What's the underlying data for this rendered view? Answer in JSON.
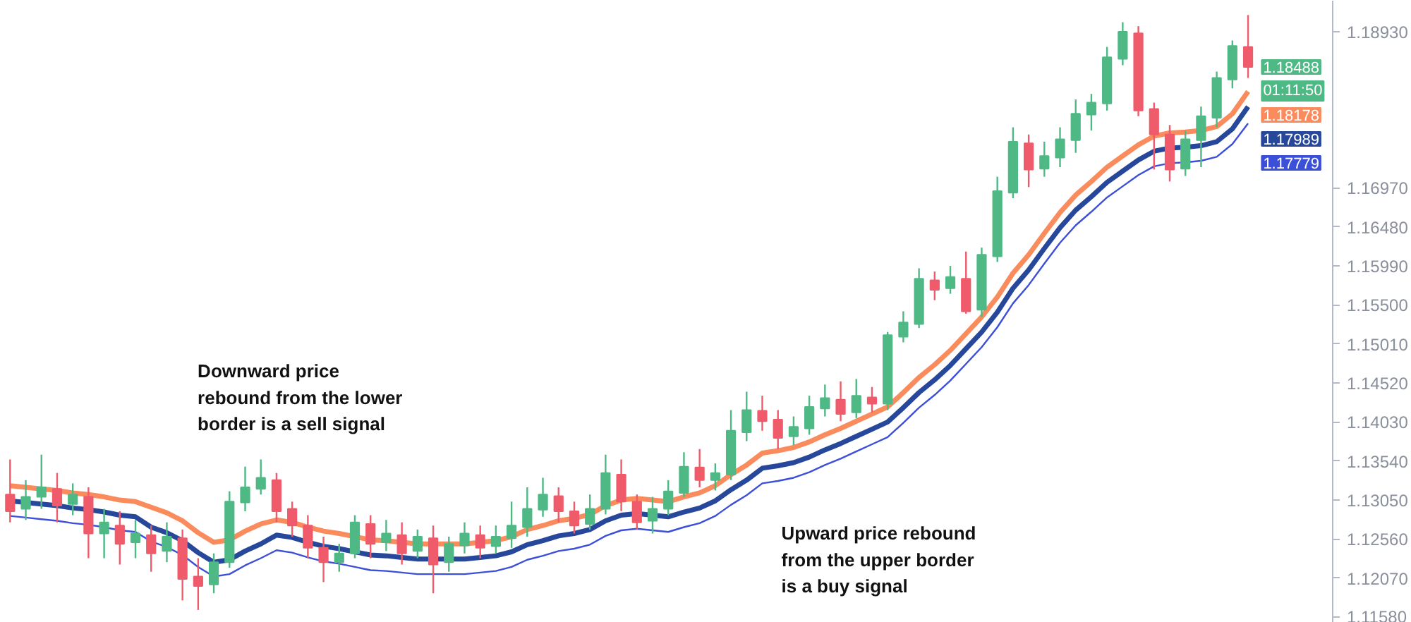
{
  "chart_data": {
    "type": "candlestick",
    "categories": [
      null,
      null,
      null,
      null,
      null,
      null,
      null,
      null,
      null,
      null,
      null,
      null,
      null,
      null,
      null,
      null,
      null,
      null,
      null,
      null,
      null,
      null,
      null,
      null,
      null,
      null,
      null,
      null,
      null,
      null,
      null,
      null,
      null,
      null,
      null,
      null,
      null,
      null,
      null,
      null,
      null,
      null,
      null,
      null,
      null,
      null,
      null,
      null,
      null,
      null,
      null,
      null,
      null,
      null,
      null,
      null,
      null,
      null,
      null,
      null,
      null,
      null,
      null,
      null,
      null,
      null,
      null,
      null,
      null,
      null,
      null,
      null,
      null,
      null,
      null,
      null,
      null,
      null,
      null,
      null
    ],
    "ohlc": [
      [
        1.1312,
        1.1356,
        1.1277,
        1.1291
      ],
      [
        1.1294,
        1.133,
        1.128,
        1.1309
      ],
      [
        1.1309,
        1.1362,
        1.1294,
        1.1321
      ],
      [
        1.1319,
        1.1339,
        1.1277,
        1.1298
      ],
      [
        1.13,
        1.1326,
        1.1286,
        1.1312
      ],
      [
        1.1309,
        1.1321,
        1.1232,
        1.1263
      ],
      [
        1.1263,
        1.1294,
        1.1232,
        1.1277
      ],
      [
        1.1273,
        1.1291,
        1.1224,
        1.125
      ],
      [
        1.1252,
        1.128,
        1.1232,
        1.1263
      ],
      [
        1.1261,
        1.1273,
        1.1215,
        1.1238
      ],
      [
        1.1241,
        1.1277,
        1.1227,
        1.1259
      ],
      [
        1.1257,
        1.1268,
        1.1179,
        1.1206
      ],
      [
        1.1209,
        1.1232,
        1.1167,
        1.1197
      ],
      [
        1.1199,
        1.1238,
        1.1188,
        1.1227
      ],
      [
        1.1227,
        1.1316,
        1.122,
        1.1303
      ],
      [
        1.1302,
        1.1347,
        1.1291,
        1.1321
      ],
      [
        1.1319,
        1.1356,
        1.1312,
        1.1333
      ],
      [
        1.133,
        1.1339,
        1.1277,
        1.1291
      ],
      [
        1.1294,
        1.1303,
        1.1259,
        1.1273
      ],
      [
        1.1273,
        1.1286,
        1.1232,
        1.1245
      ],
      [
        1.1245,
        1.1259,
        1.1202,
        1.1227
      ],
      [
        1.1227,
        1.125,
        1.1215,
        1.1238
      ],
      [
        1.1238,
        1.1286,
        1.1232,
        1.1277
      ],
      [
        1.1275,
        1.1286,
        1.1232,
        1.125
      ],
      [
        1.1252,
        1.128,
        1.1241,
        1.1263
      ],
      [
        1.1261,
        1.1277,
        1.1224,
        1.1238
      ],
      [
        1.1241,
        1.1268,
        1.1232,
        1.1259
      ],
      [
        1.1257,
        1.1273,
        1.1188,
        1.1224
      ],
      [
        1.1227,
        1.1259,
        1.1215,
        1.125
      ],
      [
        1.1248,
        1.1277,
        1.1238,
        1.1263
      ],
      [
        1.1261,
        1.1273,
        1.1232,
        1.1245
      ],
      [
        1.1247,
        1.1273,
        1.1238,
        1.1259
      ],
      [
        1.1257,
        1.1303,
        1.1245,
        1.1273
      ],
      [
        1.1271,
        1.1321,
        1.1259,
        1.1294
      ],
      [
        1.1293,
        1.1333,
        1.1284,
        1.1312
      ],
      [
        1.131,
        1.1321,
        1.1277,
        1.1291
      ],
      [
        1.1291,
        1.1303,
        1.1263,
        1.1273
      ],
      [
        1.1275,
        1.1312,
        1.1268,
        1.1294
      ],
      [
        1.1294,
        1.1362,
        1.1287,
        1.1339
      ],
      [
        1.1337,
        1.1356,
        1.1291,
        1.1303
      ],
      [
        1.1303,
        1.1312,
        1.1268,
        1.1277
      ],
      [
        1.1279,
        1.1309,
        1.1263,
        1.1294
      ],
      [
        1.1294,
        1.133,
        1.1286,
        1.1316
      ],
      [
        1.1314,
        1.1365,
        1.1309,
        1.1347
      ],
      [
        1.1346,
        1.1369,
        1.1321,
        1.133
      ],
      [
        1.133,
        1.1351,
        1.1317,
        1.1339
      ],
      [
        1.1337,
        1.1418,
        1.133,
        1.1392
      ],
      [
        1.139,
        1.1441,
        1.1379,
        1.1418
      ],
      [
        1.1417,
        1.1436,
        1.1392,
        1.1404
      ],
      [
        1.1406,
        1.1418,
        1.1369,
        1.1383
      ],
      [
        1.1385,
        1.141,
        1.1374,
        1.1397
      ],
      [
        1.1395,
        1.1436,
        1.1387,
        1.1422
      ],
      [
        1.142,
        1.145,
        1.141,
        1.1433
      ],
      [
        1.1431,
        1.1454,
        1.1404,
        1.1413
      ],
      [
        1.1415,
        1.1457,
        1.1408,
        1.1436
      ],
      [
        1.1434,
        1.1447,
        1.1415,
        1.1426
      ],
      [
        1.1426,
        1.1516,
        1.1418,
        1.1512
      ],
      [
        1.151,
        1.1542,
        1.1503,
        1.1528
      ],
      [
        1.1526,
        1.1596,
        1.1521,
        1.1583
      ],
      [
        1.1581,
        1.1592,
        1.1556,
        1.1569
      ],
      [
        1.1571,
        1.1599,
        1.1564,
        1.1585
      ],
      [
        1.1583,
        1.1617,
        1.1539,
        1.1542
      ],
      [
        1.1544,
        1.1622,
        1.1535,
        1.1613
      ],
      [
        1.1611,
        1.1711,
        1.1604,
        1.1693
      ],
      [
        1.1691,
        1.1773,
        1.1684,
        1.1755
      ],
      [
        1.1753,
        1.1764,
        1.1698,
        1.172
      ],
      [
        1.1721,
        1.1755,
        1.1711,
        1.1737
      ],
      [
        1.1735,
        1.1773,
        1.1723,
        1.1758
      ],
      [
        1.1757,
        1.1808,
        1.1741,
        1.179
      ],
      [
        1.1789,
        1.1815,
        1.1769,
        1.1804
      ],
      [
        1.1803,
        1.1874,
        1.1794,
        1.1861
      ],
      [
        1.1859,
        1.1905,
        1.1851,
        1.1893
      ],
      [
        1.1891,
        1.19,
        1.1787,
        1.1794
      ],
      [
        1.1796,
        1.1804,
        1.172,
        1.1764
      ],
      [
        1.1764,
        1.1776,
        1.1705,
        1.172
      ],
      [
        1.1721,
        1.1769,
        1.1712,
        1.1758
      ],
      [
        1.1757,
        1.1799,
        1.1723,
        1.1787
      ],
      [
        1.1785,
        1.1843,
        1.1773,
        1.1835
      ],
      [
        1.1833,
        1.1882,
        1.1822,
        1.1875
      ],
      [
        1.1874,
        1.1914,
        1.1835,
        1.18488
      ]
    ],
    "colors": [
      "#ef5b6a",
      "#4fb985",
      "#4fb985",
      "#ef5b6a",
      "#4fb985",
      "#ef5b6a",
      "#4fb985",
      "#ef5b6a",
      "#4fb985",
      "#ef5b6a",
      "#4fb985",
      "#ef5b6a",
      "#ef5b6a",
      "#4fb985",
      "#4fb985",
      "#4fb985",
      "#4fb985",
      "#ef5b6a",
      "#ef5b6a",
      "#ef5b6a",
      "#ef5b6a",
      "#4fb985",
      "#4fb985",
      "#ef5b6a",
      "#4fb985",
      "#ef5b6a",
      "#4fb985",
      "#ef5b6a",
      "#4fb985",
      "#4fb985",
      "#ef5b6a",
      "#4fb985",
      "#4fb985",
      "#4fb985",
      "#4fb985",
      "#ef5b6a",
      "#ef5b6a",
      "#4fb985",
      "#4fb985",
      "#ef5b6a",
      "#ef5b6a",
      "#4fb985",
      "#4fb985",
      "#4fb985",
      "#ef5b6a",
      "#4fb985",
      "#4fb985",
      "#4fb985",
      "#ef5b6a",
      "#ef5b6a",
      "#4fb985",
      "#4fb985",
      "#4fb985",
      "#ef5b6a",
      "#4fb985",
      "#ef5b6a",
      "#4fb985",
      "#4fb985",
      "#4fb985",
      "#ef5b6a",
      "#4fb985",
      "#ef5b6a",
      "#4fb985",
      "#4fb985",
      "#4fb985",
      "#ef5b6a",
      "#4fb985",
      "#4fb985",
      "#4fb985",
      "#4fb985",
      "#4fb985",
      "#4fb985",
      "#ef5b6a",
      "#ef5b6a",
      "#ef5b6a",
      "#4fb985",
      "#4fb985",
      "#4fb985",
      "#4fb985",
      "#ef5b6a"
    ],
    "series": [
      {
        "type": "line",
        "color": "#f98b5c",
        "values": [
          1.1323,
          1.1321,
          1.1319,
          1.1317,
          1.1314,
          1.1312,
          1.1309,
          1.1305,
          1.1303,
          1.1296,
          1.1289,
          1.1279,
          1.1264,
          1.1252,
          1.1255,
          1.1266,
          1.1275,
          1.128,
          1.1277,
          1.1271,
          1.1266,
          1.1263,
          1.1259,
          1.1255,
          1.1254,
          1.1252,
          1.125,
          1.125,
          1.125,
          1.125,
          1.1252,
          1.1254,
          1.1259,
          1.1268,
          1.1273,
          1.1279,
          1.1282,
          1.1287,
          1.1298,
          1.1305,
          1.1307,
          1.1305,
          1.1303,
          1.1309,
          1.1314,
          1.1323,
          1.1337,
          1.1349,
          1.1364,
          1.1367,
          1.1371,
          1.1378,
          1.1387,
          1.1395,
          1.1404,
          1.1413,
          1.1422,
          1.144,
          1.1459,
          1.1475,
          1.1493,
          1.1514,
          1.1535,
          1.156,
          1.159,
          1.1613,
          1.164,
          1.1666,
          1.1688,
          1.1705,
          1.1723,
          1.1737,
          1.1751,
          1.1762,
          1.1766,
          1.1767,
          1.1769,
          1.1774,
          1.179,
          1.1818
        ]
      },
      {
        "type": "line",
        "color": "#26479a",
        "values": [
          1.1304,
          1.1302,
          1.13,
          1.1298,
          1.1295,
          1.1293,
          1.129,
          1.1286,
          1.1284,
          1.1271,
          1.1264,
          1.1254,
          1.1239,
          1.1227,
          1.123,
          1.1241,
          1.125,
          1.1261,
          1.1258,
          1.1252,
          1.1247,
          1.1244,
          1.124,
          1.1236,
          1.1235,
          1.1233,
          1.1231,
          1.1231,
          1.1231,
          1.1231,
          1.1233,
          1.1235,
          1.124,
          1.1249,
          1.1254,
          1.126,
          1.1263,
          1.1268,
          1.1279,
          1.1286,
          1.1288,
          1.1286,
          1.1284,
          1.129,
          1.1295,
          1.1304,
          1.1318,
          1.133,
          1.1345,
          1.1348,
          1.1352,
          1.1359,
          1.1368,
          1.1376,
          1.1385,
          1.1394,
          1.1403,
          1.1421,
          1.144,
          1.1456,
          1.1474,
          1.1495,
          1.1516,
          1.1541,
          1.1571,
          1.1594,
          1.1621,
          1.1647,
          1.1669,
          1.1686,
          1.1704,
          1.1718,
          1.1732,
          1.1743,
          1.1747,
          1.1748,
          1.175,
          1.1755,
          1.1771,
          1.1799
        ]
      },
      {
        "type": "line",
        "color": "#3b4fd8",
        "values": [
          1.1285,
          1.1283,
          1.1281,
          1.1279,
          1.1276,
          1.1274,
          1.1271,
          1.1267,
          1.1265,
          1.1253,
          1.1246,
          1.1236,
          1.1221,
          1.1209,
          1.1212,
          1.1223,
          1.1232,
          1.1242,
          1.1239,
          1.1233,
          1.1228,
          1.1225,
          1.1221,
          1.1217,
          1.1216,
          1.1214,
          1.1212,
          1.1212,
          1.1212,
          1.1212,
          1.1214,
          1.1216,
          1.1221,
          1.123,
          1.1235,
          1.1241,
          1.1244,
          1.1249,
          1.126,
          1.1267,
          1.1269,
          1.1267,
          1.1265,
          1.1271,
          1.1276,
          1.1285,
          1.1299,
          1.1311,
          1.1326,
          1.1329,
          1.1333,
          1.134,
          1.1349,
          1.1357,
          1.1366,
          1.1375,
          1.1384,
          1.1402,
          1.1421,
          1.1437,
          1.1455,
          1.1476,
          1.1497,
          1.1522,
          1.1552,
          1.1575,
          1.1602,
          1.1628,
          1.165,
          1.1667,
          1.1685,
          1.1699,
          1.1713,
          1.1724,
          1.1728,
          1.1729,
          1.1731,
          1.1736,
          1.1752,
          1.1778
        ]
      }
    ],
    "ylim": [
      1.1151,
      1.1932
    ],
    "yticks": [
      {
        "value": 1.1158,
        "label": "1.11580"
      },
      {
        "value": 1.1207,
        "label": "1.12070"
      },
      {
        "value": 1.1256,
        "label": "1.12560"
      },
      {
        "value": 1.1305,
        "label": "1.13050"
      },
      {
        "value": 1.1354,
        "label": "1.13540"
      },
      {
        "value": 1.1403,
        "label": "1.14030"
      },
      {
        "value": 1.1452,
        "label": "1.14520"
      },
      {
        "value": 1.1501,
        "label": "1.15010"
      },
      {
        "value": 1.155,
        "label": "1.15500"
      },
      {
        "value": 1.1599,
        "label": "1.15990"
      },
      {
        "value": 1.1648,
        "label": "1.16480"
      },
      {
        "value": 1.1697,
        "label": "1.16970"
      },
      {
        "value": 1.1893,
        "label": "1.18930"
      }
    ],
    "tick_labels": "y",
    "annotations": [
      "1.18488",
      "01:11:50",
      "1.18178",
      "1.17989",
      "1.17779",
      "Downward price\nrebound from the lower\nborder is a sell signal",
      "Upward price rebound\nfrom the upper border\nis a buy signal"
    ]
  }
}
